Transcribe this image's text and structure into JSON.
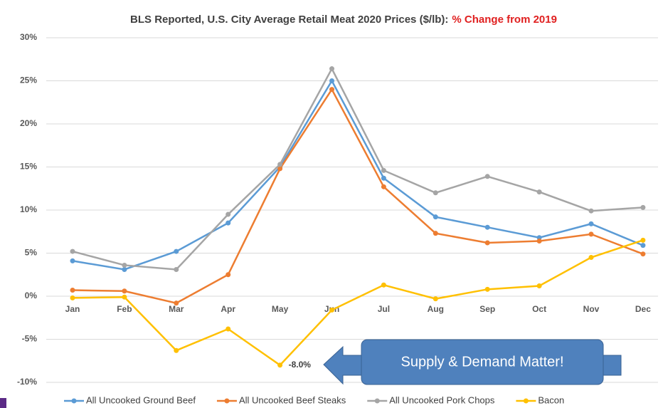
{
  "chart_data": {
    "type": "line",
    "title": "BLS Reported, U.S. City Average Retail Meat 2020 Prices ($/lb):",
    "title_highlight": "% Change from 2019",
    "annotation": "Supply & Demand Matter!",
    "categories": [
      "Jan",
      "Feb",
      "Mar",
      "Apr",
      "May",
      "Jun",
      "Jul",
      "Aug",
      "Sep",
      "Oct",
      "Nov",
      "Dec"
    ],
    "ylim": [
      -10,
      30
    ],
    "yticks": [
      {
        "value": -10,
        "label": "-10%"
      },
      {
        "value": -5,
        "label": "-5%"
      },
      {
        "value": 0,
        "label": "0%"
      },
      {
        "value": 5,
        "label": "5%"
      },
      {
        "value": 10,
        "label": "10%"
      },
      {
        "value": 15,
        "label": "15%"
      },
      {
        "value": 20,
        "label": "20%"
      },
      {
        "value": 25,
        "label": "25%"
      },
      {
        "value": 30,
        "label": "30%"
      }
    ],
    "grid": true,
    "legend": "bottom",
    "series": [
      {
        "name": "All Uncooked Ground Beef",
        "color": "#5b9bd5",
        "values": [
          4.1,
          3.1,
          5.2,
          8.5,
          15.0,
          25.0,
          13.7,
          9.2,
          8.0,
          6.8,
          8.4,
          5.9
        ]
      },
      {
        "name": "All Uncooked Beef Steaks",
        "color": "#ed7d31",
        "values": [
          0.7,
          0.6,
          -0.8,
          2.5,
          14.8,
          24.0,
          12.7,
          7.3,
          6.2,
          6.4,
          7.2,
          4.9
        ]
      },
      {
        "name": "All Uncooked Pork Chops",
        "color": "#a5a5a5",
        "values": [
          5.2,
          3.6,
          3.1,
          9.5,
          15.3,
          26.4,
          14.6,
          12.0,
          13.9,
          12.1,
          9.9,
          10.3
        ]
      },
      {
        "name": "Bacon",
        "color": "#ffc000",
        "values": [
          -0.2,
          -0.1,
          -6.3,
          -3.8,
          -8.0,
          -1.6,
          1.3,
          -0.3,
          0.8,
          1.2,
          4.5,
          6.5
        ],
        "value_labels": [
          null,
          null,
          null,
          null,
          "-8.0%",
          null,
          null,
          null,
          null,
          null,
          null,
          null
        ]
      }
    ]
  }
}
